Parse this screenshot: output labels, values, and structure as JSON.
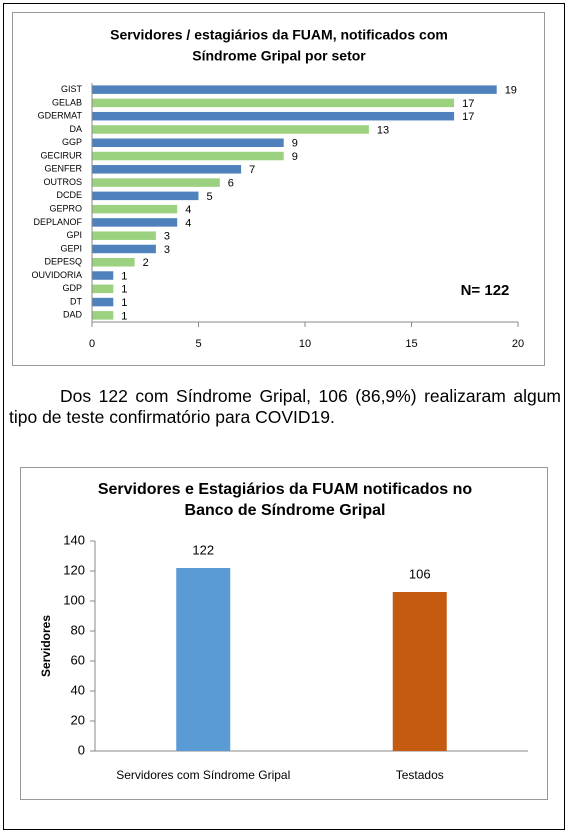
{
  "chart_data": [
    {
      "type": "hbar",
      "title": [
        "Servidores / estagiários da FUAM, notificados com",
        "Síndrome Gripal  por setor"
      ],
      "categories": [
        "GIST",
        "GELAB",
        "GDERMAT",
        "DA",
        "GGP",
        "GECIRUR",
        "GENFER",
        "OUTROS",
        "DCDE",
        "GEPRO",
        "DEPLANOF",
        "GPI",
        "GEPI",
        "DEPESQ",
        "OUVIDORIA",
        "GDP",
        "DT",
        "DAD"
      ],
      "values": [
        19,
        17,
        17,
        13,
        9,
        9,
        7,
        6,
        5,
        4,
        4,
        3,
        3,
        2,
        1,
        1,
        1,
        1
      ],
      "colors": [
        "#4f81bd",
        "#9bd17f",
        "#4f81bd",
        "#9bd17f",
        "#4f81bd",
        "#9bd17f",
        "#4f81bd",
        "#9bd17f",
        "#4f81bd",
        "#9bd17f",
        "#4f81bd",
        "#9bd17f",
        "#4f81bd",
        "#9bd17f",
        "#4f81bd",
        "#9bd17f",
        "#4f81bd",
        "#9bd17f"
      ],
      "xlim": [
        0,
        20
      ],
      "xticks": [
        0,
        5,
        10,
        15,
        20
      ],
      "annotation": "N= 122"
    },
    {
      "type": "bar",
      "title": [
        "Servidores e Estagiários da FUAM notificados no",
        "Banco de Síndrome Gripal"
      ],
      "categories": [
        "Servidores com Síndrome Gripal",
        "Testados"
      ],
      "values": [
        122,
        106
      ],
      "colors": [
        "#5b9bd5",
        "#c55a11"
      ],
      "ylabel": "Servidores",
      "ylim": [
        0,
        140
      ],
      "yticks": [
        0,
        20,
        40,
        60,
        80,
        100,
        120,
        140
      ]
    }
  ],
  "paragraph": "Dos 122 com Síndrome Gripal, 106 (86,9%) realizaram algum tipo de teste confirmatório para COVID19."
}
